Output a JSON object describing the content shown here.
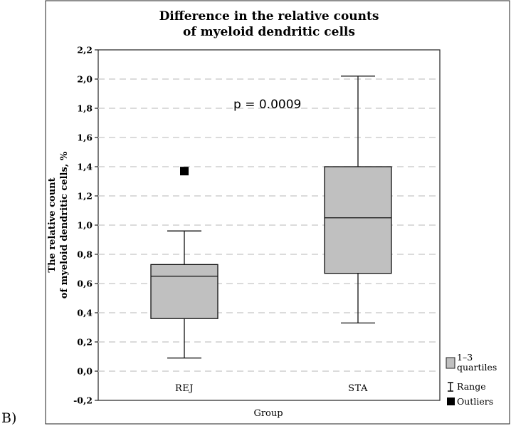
{
  "panel_label": "B)",
  "chart_data": {
    "type": "box",
    "title": [
      "Difference in the relative counts",
      "of myeloid dendritic cells"
    ],
    "xlabel": "Group",
    "ylabel": [
      "The relative count",
      "of myeloid dendritic cells, %"
    ],
    "ylim": [
      -0.2,
      2.2
    ],
    "yticks": [
      "-0,2",
      "0,0",
      "0,2",
      "0,4",
      "0,6",
      "0,8",
      "1,0",
      "1,2",
      "1,4",
      "1,6",
      "1,8",
      "2,0",
      "2,2"
    ],
    "grid": "horizontal dashed",
    "categories": [
      "REJ",
      "STA"
    ],
    "boxes": [
      {
        "category": "REJ",
        "min": 0.09,
        "q1": 0.36,
        "median": 0.65,
        "q3": 0.73,
        "max": 0.96,
        "outliers": [
          1.37
        ]
      },
      {
        "category": "STA",
        "min": 0.33,
        "q1": 0.67,
        "median": 1.05,
        "q3": 1.4,
        "max": 2.02,
        "outliers": []
      }
    ],
    "annotation": "p = 0.0009",
    "colors": {
      "box_fill": "#c0c0c0",
      "outlier": "#000000",
      "grid": "#cfcfcf"
    },
    "legend": {
      "position": "bottom-right, outside plot",
      "items": [
        {
          "icon": "filled-box-icon",
          "label": [
            "1–3",
            "quartiles"
          ]
        },
        {
          "icon": "range-whisker-icon",
          "label": [
            "Range"
          ]
        },
        {
          "icon": "outlier-square-icon",
          "label": [
            "Outliers"
          ]
        }
      ]
    }
  }
}
